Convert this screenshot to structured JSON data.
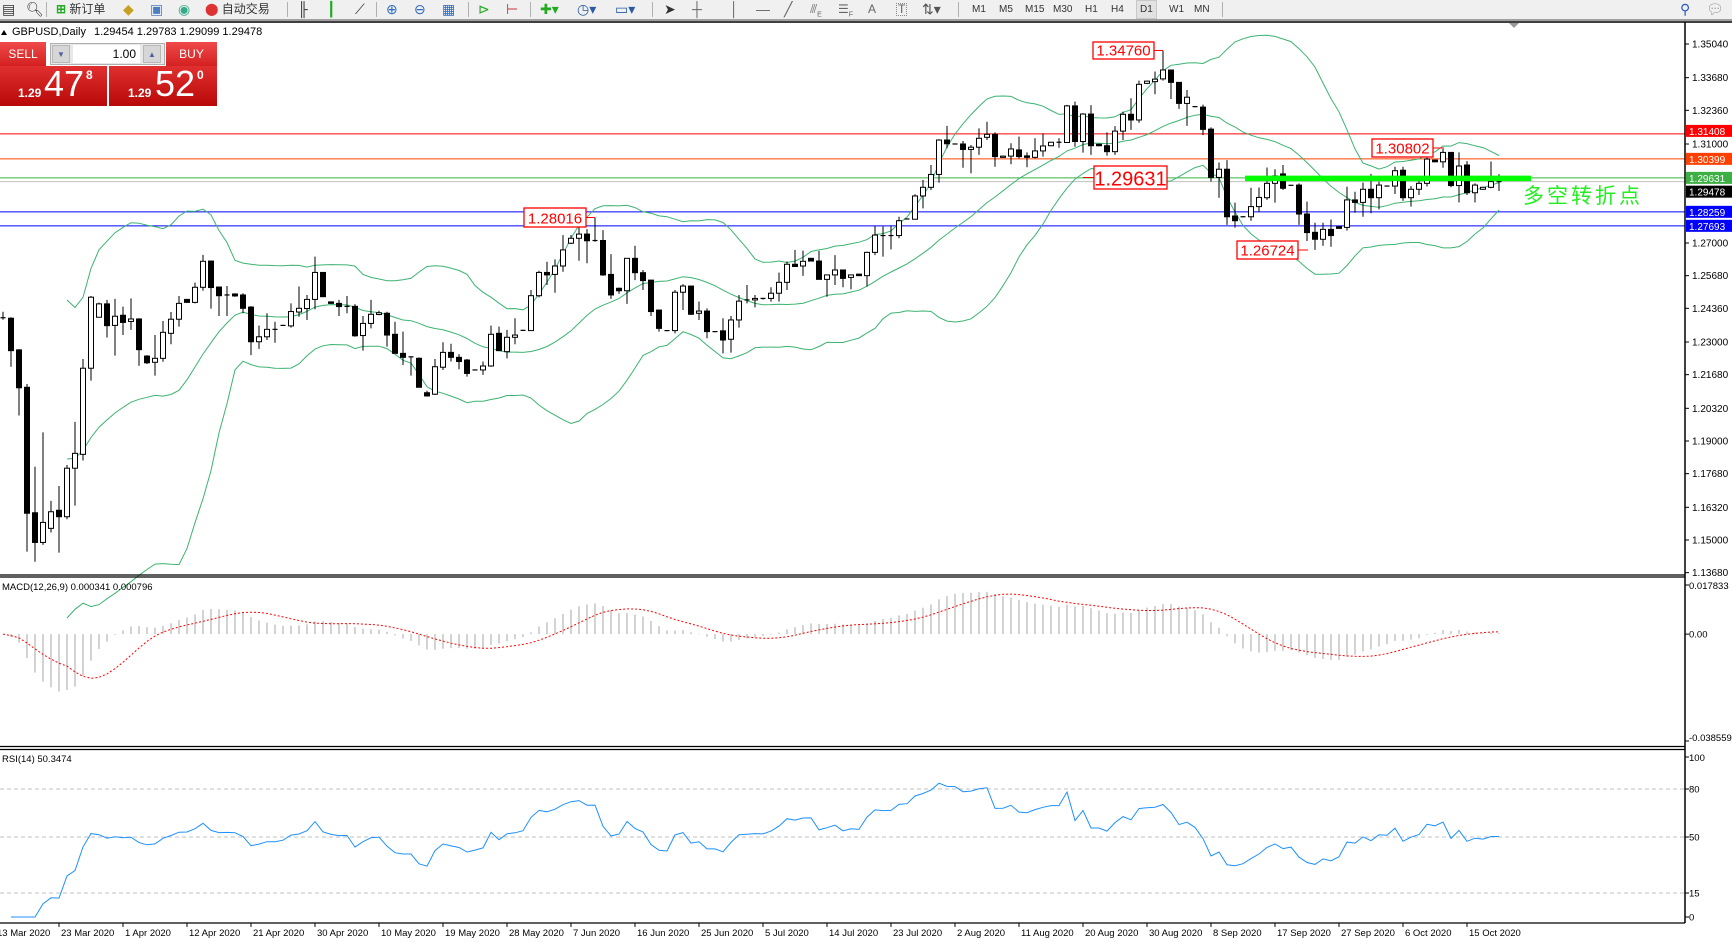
{
  "toolbar": {
    "new_order_label": "新订单",
    "auto_trading_label": "自动交易",
    "icons": [
      "new-chart-icon",
      "magnifier-icon",
      "new-order-icon",
      "metaeditor-icon",
      "navigator-icon",
      "signals-icon",
      "auto-trading-icon",
      "bar-chart-icon",
      "candlestick-icon",
      "line-chart-icon",
      "zoom-in-icon",
      "zoom-out-icon",
      "tile-windows-icon",
      "chart-shift-icon",
      "autoscroll-icon",
      "indicators-icon",
      "periods-icon",
      "templates-icon",
      "cursor-icon",
      "crosshair-icon",
      "vertical-line-icon",
      "horizontal-line-icon",
      "trendline-icon",
      "fibonacci-icon",
      "fibo-expansion-icon",
      "text-icon",
      "text-label-icon",
      "arrows-icon",
      "search-icon",
      "chat-icon"
    ],
    "draw_labels": {
      "fibo_e": "E",
      "fibo_f": "F",
      "text": "A",
      "label": "T"
    },
    "timeframes": [
      "M1",
      "M5",
      "M15",
      "M30",
      "H1",
      "H4",
      "D1",
      "W1",
      "MN"
    ],
    "active_timeframe": "D1"
  },
  "header": {
    "symbol": "GBPUSD,Daily",
    "ohlc": "1.29454 1.29783 1.29099 1.29478"
  },
  "trade_panel": {
    "sell_label": "SELL",
    "buy_label": "BUY",
    "lot": "1.00",
    "sell_price": {
      "prefix": "1.29",
      "big": "47",
      "sup": "8"
    },
    "buy_price": {
      "prefix": "1.29",
      "big": "52",
      "sup": "0"
    },
    "color": "#d42020"
  },
  "annotation_text": "多空转折点",
  "chart_data": {
    "type": "candlestick",
    "y_range": [
      1.13585,
      1.35929
    ],
    "y_tick_labels": [
      "1.35040",
      "1.33680",
      "1.32360",
      "1.31000",
      "1.27000",
      "1.25680",
      "1.24360",
      "1.23000",
      "1.21680",
      "1.20320",
      "1.19000",
      "1.17680",
      "1.16320",
      "1.15000",
      "1.13680"
    ],
    "x_tick_labels": [
      "13 Mar 2020",
      "23 Mar 2020",
      "1 Apr 2020",
      "12 Apr 2020",
      "21 Apr 2020",
      "30 Apr 2020",
      "10 May 2020",
      "19 May 2020",
      "28 May 2020",
      "7 Jun 2020",
      "16 Jun 2020",
      "25 Jun 2020",
      "5 Jul 2020",
      "14 Jul 2020",
      "23 Jul 2020",
      "2 Aug 2020",
      "11 Aug 2020",
      "20 Aug 2020",
      "30 Aug 2020",
      "8 Sep 2020",
      "17 Sep 2020",
      "27 Sep 2020",
      "6 Oct 2020",
      "15 Oct 2020"
    ],
    "horizontal_lines": [
      {
        "price": 1.31408,
        "label": "1.31408",
        "color": "#ff0000"
      },
      {
        "price": 1.30399,
        "label": "1.30399",
        "color": "#ff4000"
      },
      {
        "price": 1.29631,
        "label": "1.29631",
        "color": "#3cb043"
      },
      {
        "price": 1.29478,
        "label": "1.29478",
        "color": "#000000",
        "line_color": "#c0c0c0"
      },
      {
        "price": 1.28259,
        "label": "1.28259",
        "color": "#0000ff"
      },
      {
        "price": 1.27693,
        "label": "1.27693",
        "color": "#0000ff"
      }
    ],
    "price_labels": [
      {
        "text": "1.34760",
        "bar": 145,
        "price": 1.3476
      },
      {
        "text": "1.29631",
        "bar": 151,
        "price": 1.29631
      },
      {
        "text": "1.28016",
        "bar": 74,
        "price": 1.28016
      },
      {
        "text": "1.30802",
        "bar": 180,
        "price": 1.30802
      },
      {
        "text": "1.26724",
        "bar": 164,
        "price": 1.26724
      }
    ],
    "pivot_segment": {
      "price": 1.296,
      "from_bar": 156,
      "to_bar": 191,
      "color": "#00ff00"
    },
    "bollinger": {
      "period": 20,
      "deviation": 2,
      "color": "#3cb371"
    },
    "candles": [
      [
        1.2398,
        1.2422,
        1.239,
        1.2398
      ],
      [
        1.2396,
        1.24,
        1.22,
        1.2265
      ],
      [
        1.2268,
        1.2271,
        1.2003,
        1.2115
      ],
      [
        1.2117,
        1.213,
        1.1453,
        1.1608
      ],
      [
        1.161,
        1.1796,
        1.1412,
        1.149
      ],
      [
        1.149,
        1.1935,
        1.148,
        1.1571
      ],
      [
        1.1547,
        1.1658,
        1.153,
        1.1614
      ],
      [
        1.162,
        1.1718,
        1.1449,
        1.1594
      ],
      [
        1.1594,
        1.1803,
        1.1584,
        1.179
      ],
      [
        1.179,
        1.1977,
        1.1639,
        1.185
      ],
      [
        1.1846,
        1.2231,
        1.1821,
        1.2194
      ],
      [
        1.2194,
        1.2486,
        1.2144,
        1.2481
      ],
      [
        1.24,
        1.2459,
        1.24,
        1.2454
      ],
      [
        1.2454,
        1.247,
        1.2318,
        1.2366
      ],
      [
        1.2367,
        1.2474,
        1.2245,
        1.2404
      ],
      [
        1.2408,
        1.2443,
        1.2328,
        1.2379
      ],
      [
        1.2383,
        1.2476,
        1.2349,
        1.2393
      ],
      [
        1.2393,
        1.2396,
        1.2204,
        1.2269
      ],
      [
        1.2243,
        1.2247,
        1.2211,
        1.2216
      ],
      [
        1.2218,
        1.2328,
        1.2164,
        1.2234
      ],
      [
        1.2234,
        1.2385,
        1.222,
        1.2339
      ],
      [
        1.2335,
        1.2421,
        1.2291,
        1.2392
      ],
      [
        1.2392,
        1.2486,
        1.2362,
        1.2456
      ],
      [
        1.2472,
        1.2474,
        1.2458,
        1.246
      ],
      [
        1.246,
        1.254,
        1.2456,
        1.2521
      ],
      [
        1.2521,
        1.2652,
        1.2507,
        1.2626
      ],
      [
        1.2627,
        1.2627,
        1.2435,
        1.252
      ],
      [
        1.2522,
        1.2522,
        1.2405,
        1.2487
      ],
      [
        1.249,
        1.2526,
        1.2405,
        1.249
      ],
      [
        1.2494,
        1.2497,
        1.2483,
        1.2486
      ],
      [
        1.249,
        1.2497,
        1.2416,
        1.2436
      ],
      [
        1.2441,
        1.2445,
        1.2247,
        1.2301
      ],
      [
        1.2301,
        1.2366,
        1.2272,
        1.2321
      ],
      [
        1.2321,
        1.2416,
        1.2308,
        1.2351
      ],
      [
        1.2351,
        1.2382,
        1.2297,
        1.2351
      ],
      [
        1.2367,
        1.2369,
        1.2365,
        1.2367
      ],
      [
        1.2365,
        1.2456,
        1.2358,
        1.2423
      ],
      [
        1.2421,
        1.2524,
        1.2402,
        1.2436
      ],
      [
        1.2435,
        1.249,
        1.2389,
        1.2472
      ],
      [
        1.2472,
        1.2645,
        1.2432,
        1.2581
      ],
      [
        1.2581,
        1.2581,
        1.2483,
        1.2483
      ],
      [
        1.2462,
        1.2464,
        1.2454,
        1.2456
      ],
      [
        1.2456,
        1.247,
        1.2405,
        1.2443
      ],
      [
        1.2444,
        1.2486,
        1.2416,
        1.2444
      ],
      [
        1.2444,
        1.2453,
        1.2321,
        1.2325
      ],
      [
        1.2326,
        1.2405,
        1.2265,
        1.2375
      ],
      [
        1.2375,
        1.247,
        1.2355,
        1.2412
      ],
      [
        1.2411,
        1.2426,
        1.2408,
        1.2418
      ],
      [
        1.2416,
        1.2422,
        1.2281,
        1.2328
      ],
      [
        1.2331,
        1.2382,
        1.2254,
        1.2254
      ],
      [
        1.2254,
        1.2342,
        1.2207,
        1.2238
      ],
      [
        1.224,
        1.224,
        1.2164,
        1.2238
      ],
      [
        1.2234,
        1.2238,
        1.2117,
        1.2117
      ],
      [
        1.2095,
        1.2103,
        1.2079,
        1.2082
      ],
      [
        1.2089,
        1.2231,
        1.2086,
        1.22
      ],
      [
        1.2198,
        1.2299,
        1.2187,
        1.2258
      ],
      [
        1.2258,
        1.2293,
        1.2221,
        1.2238
      ],
      [
        1.2238,
        1.2251,
        1.219,
        1.2221
      ],
      [
        1.2227,
        1.2231,
        1.216,
        1.2173
      ],
      [
        1.2187,
        1.2189,
        1.2185,
        1.2187
      ],
      [
        1.2187,
        1.2221,
        1.2167,
        1.2203
      ],
      [
        1.2203,
        1.2366,
        1.22,
        1.2331
      ],
      [
        1.2335,
        1.2362,
        1.2265,
        1.2265
      ],
      [
        1.2261,
        1.2349,
        1.2234,
        1.2319
      ],
      [
        1.2319,
        1.2396,
        1.2291,
        1.2328
      ],
      [
        1.2347,
        1.2349,
        1.2345,
        1.2347
      ],
      [
        1.2346,
        1.251,
        1.2346,
        1.2487
      ],
      [
        1.2487,
        1.2588,
        1.248,
        1.2581
      ],
      [
        1.2581,
        1.2624,
        1.253,
        1.2571
      ],
      [
        1.2573,
        1.2634,
        1.2499,
        1.2607
      ],
      [
        1.2607,
        1.2732,
        1.2584,
        1.2672
      ],
      [
        1.2699,
        1.2732,
        1.2696,
        1.2719
      ],
      [
        1.2719,
        1.2773,
        1.2628,
        1.2736
      ],
      [
        1.2736,
        1.2756,
        1.2618,
        1.2709
      ],
      [
        1.271,
        1.28016,
        1.2705,
        1.271
      ],
      [
        1.271,
        1.2752,
        1.2567,
        1.2571
      ],
      [
        1.2573,
        1.2655,
        1.2474,
        1.249
      ],
      [
        1.2517,
        1.252,
        1.2495,
        1.2507
      ],
      [
        1.2507,
        1.2638,
        1.2454,
        1.2638
      ],
      [
        1.2638,
        1.2689,
        1.255,
        1.258
      ],
      [
        1.258,
        1.2591,
        1.251,
        1.2548
      ],
      [
        1.255,
        1.255,
        1.2405,
        1.2423
      ],
      [
        1.2429,
        1.2429,
        1.2342,
        1.2355
      ],
      [
        1.2346,
        1.2348,
        1.2344,
        1.2346
      ],
      [
        1.2346,
        1.251,
        1.2335,
        1.2501
      ],
      [
        1.2501,
        1.2534,
        1.2429,
        1.2526
      ],
      [
        1.2526,
        1.2526,
        1.2409,
        1.2412
      ],
      [
        1.2416,
        1.2463,
        1.2389,
        1.2425
      ],
      [
        1.2425,
        1.2436,
        1.2315,
        1.2342
      ],
      [
        1.2342,
        1.2344,
        1.234,
        1.2342
      ],
      [
        1.2345,
        1.2396,
        1.2254,
        1.2308
      ],
      [
        1.2311,
        1.2405,
        1.2257,
        1.2389
      ],
      [
        1.2389,
        1.249,
        1.2358,
        1.2465
      ],
      [
        1.247,
        1.253,
        1.2456,
        1.247
      ],
      [
        1.247,
        1.249,
        1.244,
        1.2476
      ],
      [
        1.2476,
        1.2478,
        1.2471,
        1.2473
      ],
      [
        1.2476,
        1.2521,
        1.2463,
        1.2497
      ],
      [
        1.2497,
        1.258,
        1.2463,
        1.2541
      ],
      [
        1.2541,
        1.2625,
        1.251,
        1.2614
      ],
      [
        1.2614,
        1.2672,
        1.2605,
        1.2605
      ],
      [
        1.2607,
        1.2669,
        1.2567,
        1.2626
      ],
      [
        1.2638,
        1.264,
        1.2625,
        1.2627
      ],
      [
        1.2627,
        1.2668,
        1.2553,
        1.2553
      ],
      [
        1.2553,
        1.2571,
        1.2483,
        1.2571
      ],
      [
        1.2571,
        1.2651,
        1.253,
        1.2591
      ],
      [
        1.2591,
        1.2591,
        1.2521,
        1.2557
      ],
      [
        1.2561,
        1.2571,
        1.2513,
        1.2571
      ],
      [
        1.2574,
        1.2576,
        1.2566,
        1.2568
      ],
      [
        1.2568,
        1.2665,
        1.2524,
        1.2662
      ],
      [
        1.2662,
        1.2769,
        1.2651,
        1.2732
      ],
      [
        1.273,
        1.2767,
        1.2645,
        1.2728
      ],
      [
        1.273,
        1.277,
        1.2674,
        1.273
      ],
      [
        1.273,
        1.2806,
        1.2719,
        1.279
      ],
      [
        1.2797,
        1.2799,
        1.2795,
        1.2797
      ],
      [
        1.2796,
        1.2897,
        1.2796,
        1.289
      ],
      [
        1.289,
        1.2955,
        1.284,
        1.2925
      ],
      [
        1.2925,
        1.3015,
        1.2914,
        1.2977
      ],
      [
        1.2977,
        1.3119,
        1.2944,
        1.3116
      ],
      [
        1.3116,
        1.3173,
        1.3083,
        1.3101
      ],
      [
        1.31,
        1.3102,
        1.3098,
        1.31
      ],
      [
        1.31,
        1.3112,
        1.3004,
        1.3078
      ],
      [
        1.3078,
        1.3096,
        1.2982,
        1.3087
      ],
      [
        1.3087,
        1.3163,
        1.3056,
        1.3123
      ],
      [
        1.3127,
        1.319,
        1.3116,
        1.3139
      ],
      [
        1.3139,
        1.3147,
        1.3008,
        1.3049
      ],
      [
        1.3046,
        1.3053,
        1.3044,
        1.3051
      ],
      [
        1.3051,
        1.3103,
        1.3018,
        1.308
      ],
      [
        1.3076,
        1.313,
        1.3042,
        1.3049
      ],
      [
        1.3052,
        1.3066,
        1.3006,
        1.3046
      ],
      [
        1.3046,
        1.3123,
        1.3042,
        1.3072
      ],
      [
        1.3072,
        1.3143,
        1.3049,
        1.3092
      ],
      [
        1.3093,
        1.3109,
        1.3091,
        1.3107
      ],
      [
        1.3107,
        1.3123,
        1.3085,
        1.3107
      ],
      [
        1.3106,
        1.3258,
        1.3106,
        1.3254
      ],
      [
        1.3254,
        1.3271,
        1.3089,
        1.311
      ],
      [
        1.311,
        1.3224,
        1.3065,
        1.3221
      ],
      [
        1.3221,
        1.3257,
        1.3056,
        1.3093
      ],
      [
        1.3099,
        1.3101,
        1.3091,
        1.3093
      ],
      [
        1.3093,
        1.3147,
        1.3053,
        1.3069
      ],
      [
        1.3069,
        1.3172,
        1.3056,
        1.3152
      ],
      [
        1.3152,
        1.3231,
        1.3116,
        1.322
      ],
      [
        1.322,
        1.3285,
        1.3157,
        1.3197
      ],
      [
        1.3197,
        1.3356,
        1.3186,
        1.3341
      ],
      [
        1.3345,
        1.3356,
        1.3343,
        1.3354
      ],
      [
        1.3352,
        1.3393,
        1.3301,
        1.3362
      ],
      [
        1.3363,
        1.3476,
        1.3356,
        1.3399
      ],
      [
        1.3399,
        1.3399,
        1.3282,
        1.3349
      ],
      [
        1.3349,
        1.3349,
        1.3242,
        1.3264
      ],
      [
        1.3264,
        1.3318,
        1.3173,
        1.3289
      ],
      [
        1.3251,
        1.3253,
        1.3249,
        1.3251
      ],
      [
        1.3249,
        1.3259,
        1.3136,
        1.3159
      ],
      [
        1.316,
        1.3167,
        1.2948,
        1.2965
      ],
      [
        1.2965,
        1.3025,
        1.2883,
        1.2998
      ],
      [
        1.2998,
        1.3035,
        1.2773,
        1.2806
      ],
      [
        1.2809,
        1.2863,
        1.2762,
        1.279
      ],
      [
        1.2806,
        1.2808,
        1.2804,
        1.2806
      ],
      [
        1.2806,
        1.2923,
        1.279,
        1.2847
      ],
      [
        1.2847,
        1.2924,
        1.2826,
        1.2884
      ],
      [
        1.2883,
        1.3005,
        1.2874,
        1.2941
      ],
      [
        1.2941,
        1.2998,
        1.2863,
        1.2971
      ],
      [
        1.2979,
        1.3015,
        1.2914,
        1.2921
      ],
      [
        1.2933,
        1.2935,
        1.2931,
        1.2933
      ],
      [
        1.2934,
        1.2941,
        1.2773,
        1.2817
      ],
      [
        1.2817,
        1.2867,
        1.2708,
        1.2742
      ],
      [
        1.2743,
        1.2782,
        1.26724,
        1.2715
      ],
      [
        1.2715,
        1.2782,
        1.2689,
        1.2755
      ],
      [
        1.2755,
        1.2795,
        1.2685,
        1.273
      ],
      [
        1.2766,
        1.2768,
        1.2757,
        1.2759
      ],
      [
        1.2763,
        1.2927,
        1.275,
        1.2874
      ],
      [
        1.2874,
        1.2907,
        1.2822,
        1.2864
      ],
      [
        1.2864,
        1.2944,
        1.2806,
        1.2917
      ],
      [
        1.2917,
        1.2979,
        1.282,
        1.2883
      ],
      [
        1.2883,
        1.2948,
        1.2836,
        1.2934
      ],
      [
        1.293,
        1.2932,
        1.2928,
        1.293
      ],
      [
        1.293,
        1.3008,
        1.2898,
        1.2992
      ],
      [
        1.2994,
        1.3008,
        1.287,
        1.2883
      ],
      [
        1.2883,
        1.293,
        1.2847,
        1.2917
      ],
      [
        1.2917,
        1.2968,
        1.2894,
        1.2941
      ],
      [
        1.2941,
        1.3046,
        1.2928,
        1.3039
      ],
      [
        1.3035,
        1.3037,
        1.3026,
        1.3028
      ],
      [
        1.3028,
        1.30802,
        1.3004,
        1.3066
      ],
      [
        1.3066,
        1.3066,
        1.2925,
        1.2932
      ],
      [
        1.2932,
        1.3066,
        1.2864,
        1.3011
      ],
      [
        1.3015,
        1.3031,
        1.2894,
        1.2903
      ],
      [
        1.2903,
        1.2941,
        1.2864,
        1.2934
      ],
      [
        1.2917,
        1.2927,
        1.2915,
        1.2925
      ],
      [
        1.2925,
        1.3029,
        1.2921,
        1.2948
      ],
      [
        1.29454,
        1.29783,
        1.29099,
        1.29478
      ]
    ],
    "macd": {
      "label": "MACD(12,26,9) 0.000341 0.000796",
      "fast": 12,
      "slow": 26,
      "signal": 9,
      "y_range": [
        -0.038559,
        0.017833
      ],
      "y_tick_labels": [
        "0.017833",
        "0.00",
        "-0.038559"
      ],
      "histogram_color": "#c0c0c0",
      "signal_color": "#ff0000"
    },
    "rsi": {
      "label": "RSI(14) 50.3474",
      "period": 14,
      "y_range": [
        0,
        100
      ],
      "levels": [
        80,
        50,
        15
      ],
      "y_tick_labels": [
        "100",
        "80",
        "50",
        "15",
        "0"
      ],
      "color": "#1e90ff"
    }
  }
}
